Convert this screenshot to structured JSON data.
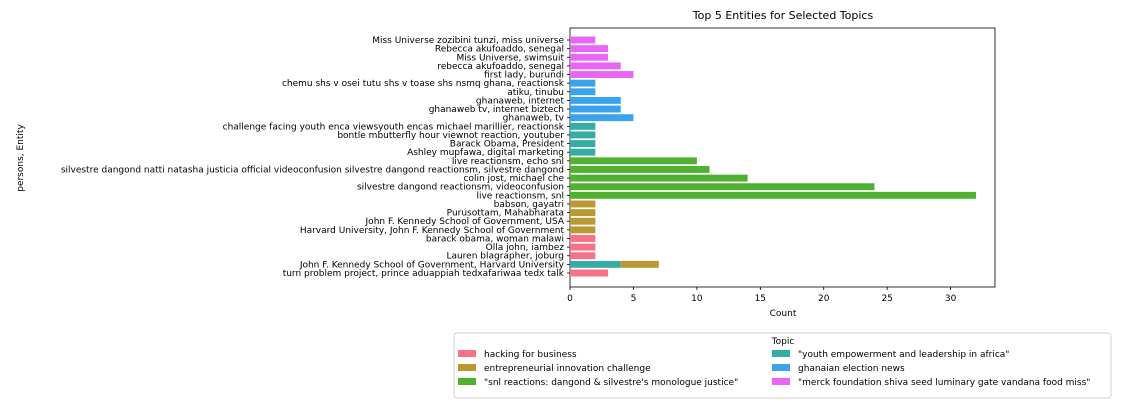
{
  "chart_data": {
    "type": "bar",
    "orientation": "horizontal",
    "stacked": true,
    "title": "Top 5 Entities for Selected Topics",
    "xlabel": "Count",
    "ylabel": "persons, Entity",
    "xlim": [
      0,
      33.5
    ],
    "xticks": [
      0,
      5,
      10,
      15,
      20,
      25,
      30
    ],
    "grid": false,
    "legend_title": "Topic",
    "legend_position": "bottom",
    "categories": [
      "Miss Universe zozibini tunzi, miss universe",
      "Rebecca akufoaddo, senegal",
      "Miss Universe, swimsuit",
      "rebecca akufoaddo, senegal",
      "first lady, burundi",
      "chemu shs v osei tutu shs v toase shs nsmq ghana, reactionsk",
      "atiku, tinubu",
      "ghanaweb, internet",
      "ghanaweb tv, internet biztech",
      "ghanaweb, tv",
      "challenge facing youth enca viewsyouth encas michael marillier, reactionsk",
      "bontle mbutterfly hour viewnot reaction, youtuber",
      "Barack Obama, President",
      "Ashley mupfawa, digital marketing",
      "live reactionsm, echo snl",
      "silvestre dangond natti natasha justicia official videoconfusion silvestre dangond reactionsm, silvestre dangond",
      "colin jost, michael che",
      "silvestre dangond reactionsm, videoconfusion",
      "live reactionsm, snl",
      "babson, gayatri",
      "Purusottam, Mahabharata",
      "John F. Kennedy School of Government, USA",
      "Harvard University, John F. Kennedy School of Government",
      "barack obama, woman malawi",
      "Olla john, iambez",
      "Lauren blagrapher, joburg",
      "John F. Kennedy School of Government, Harvard University",
      "turn problem project, prince aduappiah tedxafariwaa tedx talk"
    ],
    "series": [
      {
        "name": "hacking for business",
        "color": "#f77189",
        "values": [
          0,
          0,
          0,
          0,
          0,
          0,
          0,
          0,
          0,
          0,
          0,
          0,
          0,
          0,
          0,
          0,
          0,
          0,
          0,
          0,
          0,
          0,
          0,
          2,
          2,
          2,
          0,
          3
        ]
      },
      {
        "name": "entrepreneurial innovation challenge",
        "color": "#bb9832",
        "values": [
          0,
          0,
          0,
          0,
          0,
          0,
          0,
          0,
          0,
          0,
          0,
          0,
          0,
          0,
          0,
          0,
          0,
          0,
          0,
          2,
          2,
          2,
          2,
          0,
          0,
          0,
          3,
          0
        ]
      },
      {
        "name": "\"snl reactions: dangond & silvestre's monologue justice\"",
        "color": "#50b131",
        "values": [
          0,
          0,
          0,
          0,
          0,
          0,
          0,
          0,
          0,
          0,
          0,
          0,
          0,
          0,
          10,
          11,
          14,
          24,
          32,
          0,
          0,
          0,
          0,
          0,
          0,
          0,
          0,
          0
        ]
      },
      {
        "name": "\"youth empowerment and leadership in africa\"",
        "color": "#36ada4",
        "values": [
          0,
          0,
          0,
          0,
          0,
          0,
          0,
          0,
          0,
          0,
          2,
          2,
          2,
          2,
          0,
          0,
          0,
          0,
          0,
          0,
          0,
          0,
          0,
          0,
          0,
          0,
          4,
          0
        ]
      },
      {
        "name": "ghanaian election news",
        "color": "#3ba3ec",
        "values": [
          0,
          0,
          0,
          0,
          0,
          2,
          2,
          4,
          4,
          5,
          0,
          0,
          0,
          0,
          0,
          0,
          0,
          0,
          0,
          0,
          0,
          0,
          0,
          0,
          0,
          0,
          0,
          0
        ]
      },
      {
        "name": "\"merck foundation shiva seed luminary gate vandana food miss\"",
        "color": "#e866f4",
        "values": [
          2,
          3,
          3,
          4,
          5,
          0,
          0,
          0,
          0,
          0,
          0,
          0,
          0,
          0,
          0,
          0,
          0,
          0,
          0,
          0,
          0,
          0,
          0,
          0,
          0,
          0,
          0,
          0
        ]
      }
    ],
    "stack_order_note_order": [
      3,
      1
    ]
  }
}
